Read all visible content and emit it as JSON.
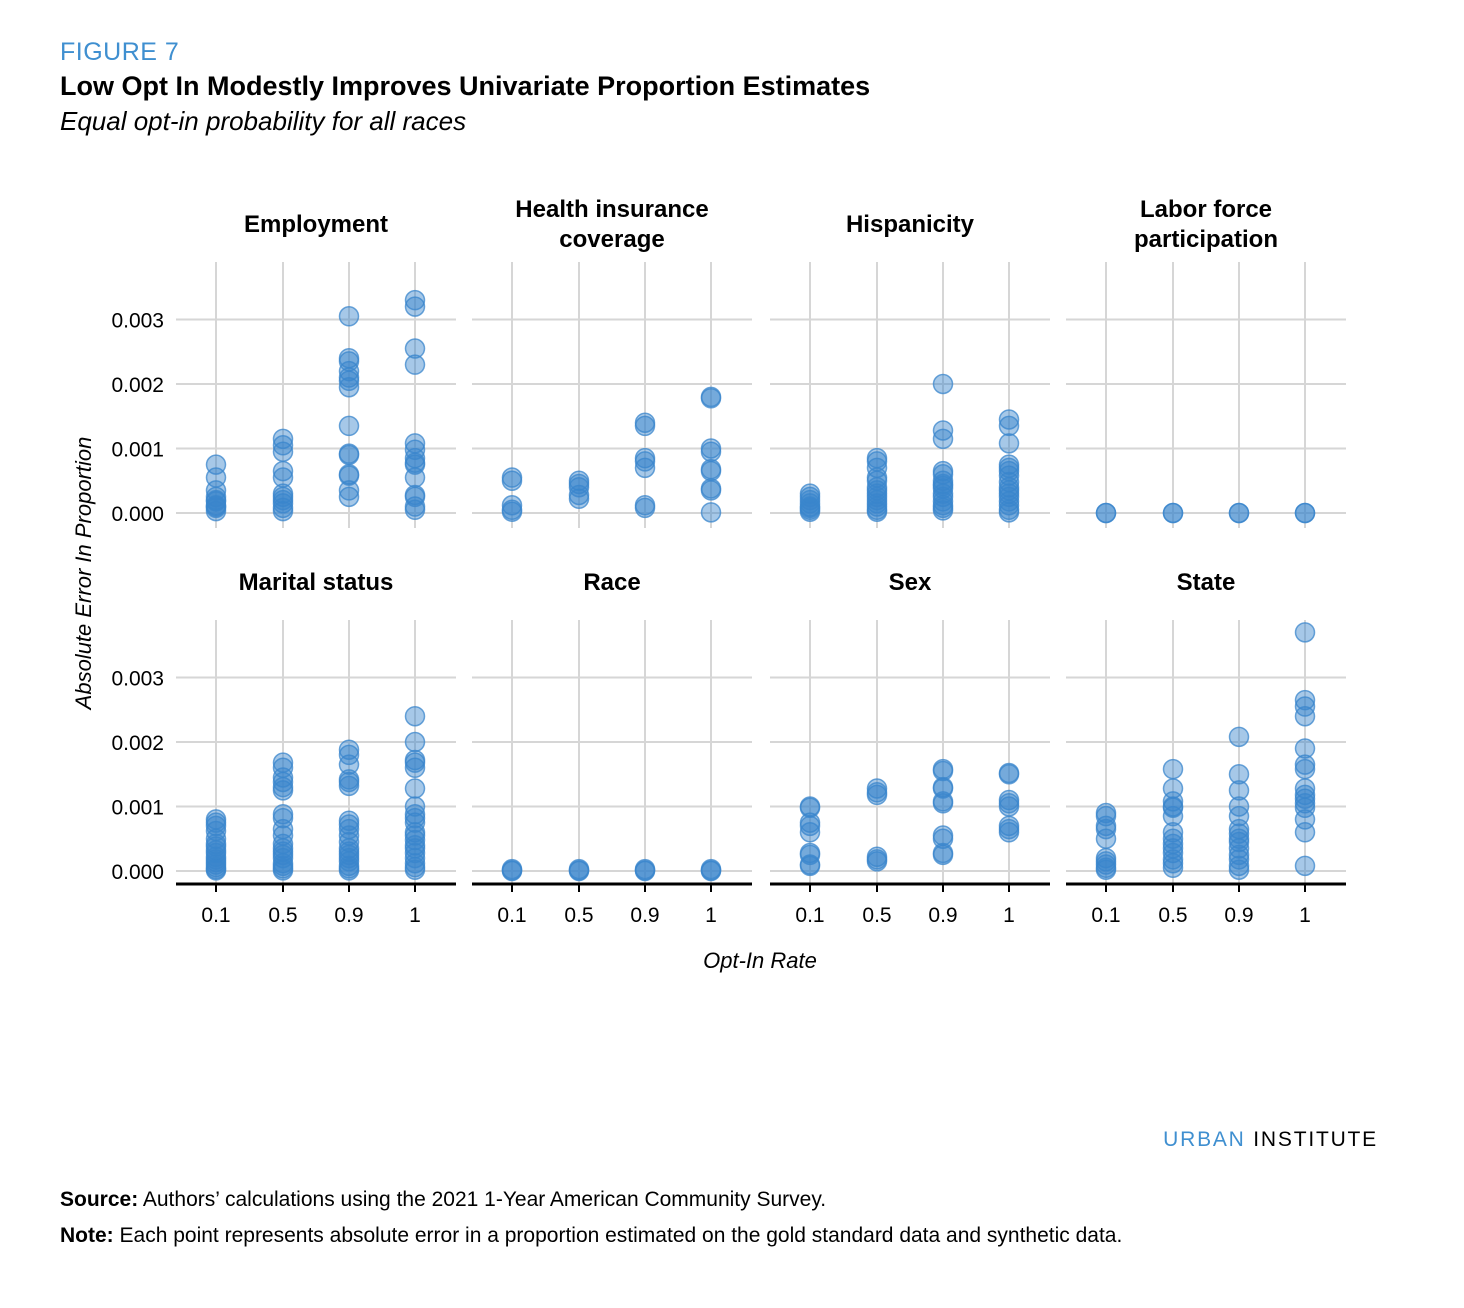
{
  "figure_label": "FIGURE 7",
  "title": "Low Opt In Modestly Improves Univariate Proportion Estimates",
  "subtitle": "Equal opt-in probability for all races",
  "brand": {
    "part1": "URBAN",
    "part2": "INSTITUTE"
  },
  "source": {
    "label": "Source:",
    "text": "Authors’ calculations using the 2021 1-Year American Community Survey."
  },
  "note": {
    "label": "Note:",
    "text": "Each point represents absolute error in a proportion estimated on the gold standard data and synthetic data."
  },
  "colors": {
    "point": "#3a86cc",
    "grid": "#d6d6d6",
    "axis": "#000000",
    "accent": "#3f8fd0"
  },
  "chart_data": {
    "type": "scatter",
    "xlabel": "Opt-In Rate",
    "ylabel": "Absolute Error In Proportion",
    "categories": [
      "0.1",
      "0.5",
      "0.9",
      "1"
    ],
    "ylim": [
      -0.0002,
      0.0039
    ],
    "yticks": [
      "0.000",
      "0.001",
      "0.002",
      "0.003"
    ],
    "ytick_values": [
      0,
      0.001,
      0.002,
      0.003
    ],
    "grid": true,
    "facets": [
      {
        "title": [
          "Employment"
        ],
        "points": [
          [
            0.00075,
            0.00055,
            0.00035,
            0.00025,
            0.00018,
            0.00012,
            8e-05,
            3e-05,
            0.0001,
            0.0002
          ],
          [
            0.00115,
            0.00105,
            0.00095,
            0.00065,
            0.00055,
            0.0003,
            0.00025,
            0.0002,
            0.00015,
            8e-05,
            3e-05
          ],
          [
            0.00305,
            0.0024,
            0.00235,
            0.0022,
            0.0021,
            0.00205,
            0.00195,
            0.00135,
            0.00092,
            0.0009,
            0.0006,
            0.00058,
            0.00035,
            0.00025
          ],
          [
            0.0033,
            0.0032,
            0.00255,
            0.0023,
            0.00108,
            0.00098,
            0.00085,
            0.00078,
            0.00075,
            0.00055,
            0.00028,
            0.00025,
            0.0001,
            5e-05
          ]
        ]
      },
      {
        "title": [
          "Health insurance",
          "coverage"
        ],
        "points": [
          [
            0.00055,
            0.0005,
            0.00012,
            5e-05,
            2e-05
          ],
          [
            0.0005,
            0.00045,
            0.0004,
            0.00028,
            0.00022
          ],
          [
            0.0014,
            0.00135,
            0.00085,
            0.0008,
            0.0007,
            0.00012,
            8e-05
          ],
          [
            0.0018,
            0.00178,
            0.001,
            0.00095,
            0.00068,
            0.00065,
            0.00038,
            0.00035,
            1e-05
          ]
        ]
      },
      {
        "title": [
          "Hispanicity"
        ],
        "points": [
          [
            0.0003,
            0.00025,
            0.0002,
            0.00015,
            0.0001,
            8e-05,
            5e-05,
            2e-05
          ],
          [
            0.00085,
            0.0008,
            0.0007,
            0.00055,
            0.0005,
            0.0004,
            0.00035,
            0.0003,
            0.00025,
            0.0002,
            0.00015,
            0.0001,
            5e-05,
            2e-05
          ],
          [
            0.002,
            0.00128,
            0.00115,
            0.00065,
            0.0006,
            0.0005,
            0.00045,
            0.00042,
            0.00038,
            0.0003,
            0.00025,
            0.00018,
            0.00012,
            8e-05,
            4e-05
          ],
          [
            0.00145,
            0.00135,
            0.00108,
            0.00075,
            0.0007,
            0.00065,
            0.00058,
            0.00048,
            0.0004,
            0.00035,
            0.0003,
            0.00025,
            0.00018,
            0.00012,
            5e-05,
            1e-05
          ]
        ]
      },
      {
        "title": [
          "Labor force",
          "participation"
        ],
        "points": [
          [
            0.0,
            0.0
          ],
          [
            0.0,
            0.0
          ],
          [
            0.0,
            0.0
          ],
          [
            0.0,
            0.0
          ]
        ]
      },
      {
        "title": [
          "Marital status"
        ],
        "points": [
          [
            0.0008,
            0.00075,
            0.0007,
            0.00062,
            0.0005,
            0.00042,
            0.00038,
            0.00032,
            0.00028,
            0.00022,
            0.00018,
            0.00014,
            0.0001,
            6e-05,
            3e-05,
            1e-05
          ],
          [
            0.00168,
            0.0016,
            0.00145,
            0.00138,
            0.0013,
            0.00125,
            0.00088,
            0.00082,
            0.00065,
            0.00055,
            0.00042,
            0.00035,
            0.0003,
            0.00025,
            0.0002,
            0.00012,
            8e-05,
            4e-05,
            1e-05
          ],
          [
            0.00188,
            0.0018,
            0.00165,
            0.00142,
            0.00138,
            0.00132,
            0.00078,
            0.00072,
            0.00065,
            0.00055,
            0.00045,
            0.00035,
            0.0003,
            0.00025,
            0.0002,
            0.00015,
            8e-05,
            4e-05,
            1e-05
          ],
          [
            0.0024,
            0.002,
            0.00172,
            0.00168,
            0.0016,
            0.00128,
            0.001,
            0.00088,
            0.00082,
            0.00075,
            0.0006,
            0.00055,
            0.00048,
            0.0004,
            0.00035,
            0.00028,
            0.0002,
            0.00012,
            6e-05,
            2e-05
          ]
        ]
      },
      {
        "title": [
          "Race"
        ],
        "points": [
          [
            3e-05,
            1e-05,
            0.0
          ],
          [
            3e-05,
            1e-05,
            0.0
          ],
          [
            3e-05,
            1e-05,
            0.0
          ],
          [
            3e-05,
            1e-05,
            0.0
          ]
        ]
      },
      {
        "title": [
          "Sex"
        ],
        "points": [
          [
            0.001,
            0.00098,
            0.00075,
            0.0007,
            0.0006,
            0.00028,
            0.00025,
            0.0001,
            8e-05
          ],
          [
            0.00128,
            0.00122,
            0.00118,
            0.00022,
            0.00018,
            0.00015
          ],
          [
            0.00158,
            0.00155,
            0.0013,
            0.00128,
            0.00108,
            0.00105,
            0.00055,
            0.0005,
            0.00028,
            0.00025
          ],
          [
            0.00152,
            0.0015,
            0.0011,
            0.00105,
            0.001,
            0.0007,
            0.00065,
            0.0006
          ]
        ]
      },
      {
        "title": [
          "State"
        ],
        "points": [
          [
            0.0009,
            0.00085,
            0.0007,
            0.00065,
            0.0005,
            0.0002,
            0.00015,
            0.0001,
            5e-05,
            2e-05
          ],
          [
            0.00158,
            0.00128,
            0.00108,
            0.001,
            0.00098,
            0.00085,
            0.0006,
            0.0005,
            0.00042,
            0.00035,
            0.00028,
            0.00018,
            0.00012,
            5e-05
          ],
          [
            0.00208,
            0.0015,
            0.00125,
            0.001,
            0.00085,
            0.00065,
            0.00058,
            0.0005,
            0.00045,
            0.00035,
            0.00025,
            0.00018,
            8e-05,
            2e-05
          ],
          [
            0.0037,
            0.00265,
            0.00255,
            0.0024,
            0.0019,
            0.00165,
            0.00158,
            0.00128,
            0.00118,
            0.00112,
            0.00105,
            0.00098,
            0.0008,
            0.0006,
            8e-05
          ]
        ]
      }
    ]
  }
}
